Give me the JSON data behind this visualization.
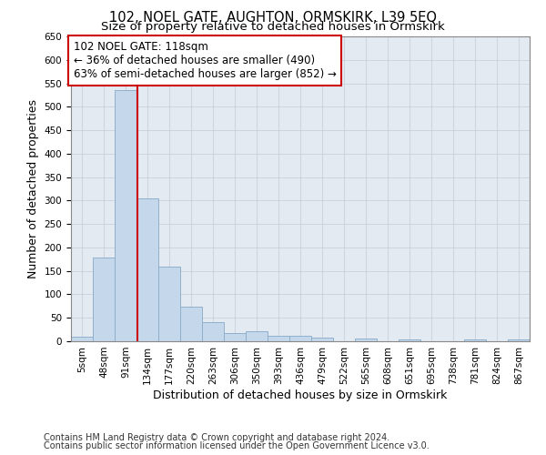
{
  "title": "102, NOEL GATE, AUGHTON, ORMSKIRK, L39 5EQ",
  "subtitle": "Size of property relative to detached houses in Ormskirk",
  "xlabel": "Distribution of detached houses by size in Ormskirk",
  "ylabel": "Number of detached properties",
  "bar_labels": [
    "5sqm",
    "48sqm",
    "91sqm",
    "134sqm",
    "177sqm",
    "220sqm",
    "263sqm",
    "306sqm",
    "350sqm",
    "393sqm",
    "436sqm",
    "479sqm",
    "522sqm",
    "565sqm",
    "608sqm",
    "651sqm",
    "695sqm",
    "738sqm",
    "781sqm",
    "824sqm",
    "867sqm"
  ],
  "bar_heights": [
    10,
    178,
    535,
    305,
    160,
    73,
    40,
    18,
    22,
    12,
    12,
    8,
    0,
    5,
    0,
    4,
    0,
    0,
    4,
    0,
    3
  ],
  "bar_color": "#c5d8eb",
  "bar_edgecolor": "#8fb0cc",
  "grid_color": "#c8d0dc",
  "background_color": "#e4eaf2",
  "vline_x": 2.55,
  "vline_color": "#cc0000",
  "annotation_line1": "102 NOEL GATE: 118sqm",
  "annotation_line2": "← 36% of detached houses are smaller (490)",
  "annotation_line3": "63% of semi-detached houses are larger (852) →",
  "ylim": [
    0,
    650
  ],
  "yticks": [
    0,
    50,
    100,
    150,
    200,
    250,
    300,
    350,
    400,
    450,
    500,
    550,
    600,
    650
  ],
  "footnote1": "Contains HM Land Registry data © Crown copyright and database right 2024.",
  "footnote2": "Contains public sector information licensed under the Open Government Licence v3.0.",
  "title_fontsize": 10.5,
  "subtitle_fontsize": 9.5,
  "axis_label_fontsize": 9,
  "tick_fontsize": 7.5,
  "annotation_fontsize": 8.5,
  "footnote_fontsize": 7
}
